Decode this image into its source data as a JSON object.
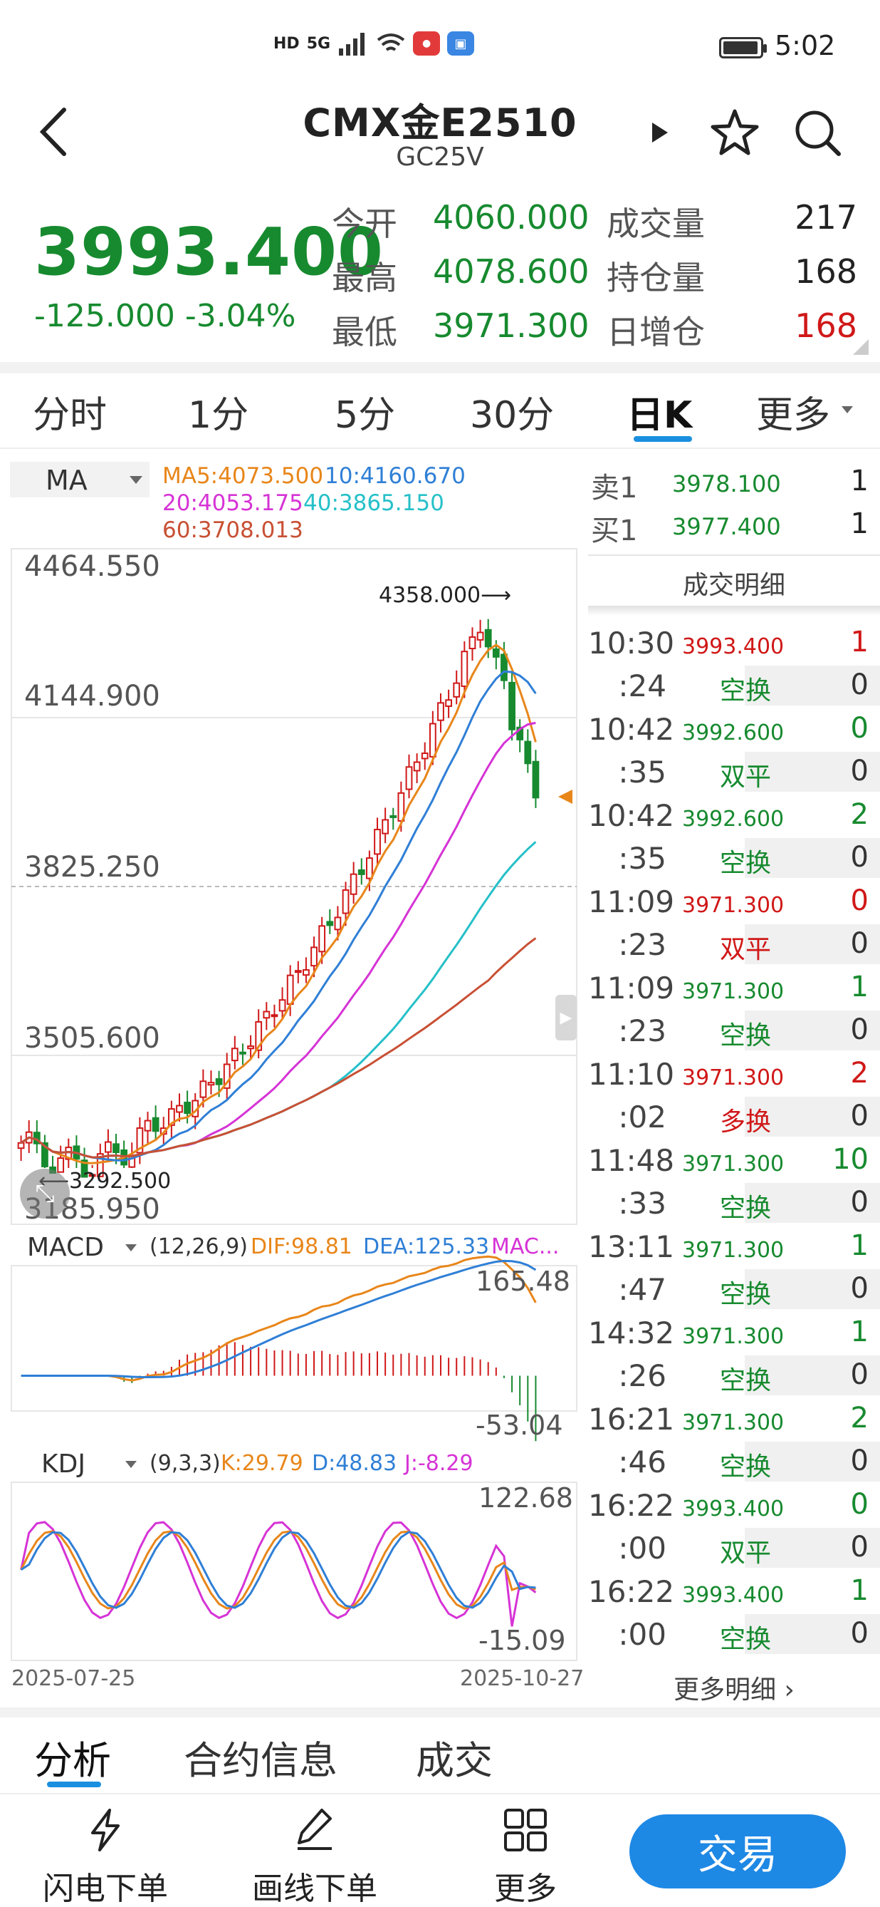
{
  "status_bar": {
    "time": "5:02",
    "chips": [
      "HD",
      "5G"
    ]
  },
  "header": {
    "title": "CMX金E2510",
    "subtitle": "GC25V"
  },
  "quote": {
    "price": "3993.400",
    "change": "-125.000",
    "change_pct": "-3.04%",
    "stats": [
      {
        "label": "今开",
        "value": "4060.000",
        "label2": "成交量",
        "value2": "217"
      },
      {
        "label": "最高",
        "value": "4078.600",
        "label2": "持仓量",
        "value2": "168"
      },
      {
        "label": "最低",
        "value": "3971.300",
        "label2": "日增仓",
        "value2": "168"
      }
    ]
  },
  "period_tabs": [
    "分时",
    "1分",
    "5分",
    "30分",
    "日K",
    "更多"
  ],
  "active_period": "日K",
  "indicators": {
    "ma_selector": "MA",
    "ma5": "MA5:4073.500",
    "ma10": "10:4160.670",
    "ma20": "20:4053.175",
    "ma40": "40:3865.150",
    "ma60": "60:3708.013",
    "macd_selector": "MACD",
    "macd_params": "(12,26,9)",
    "macd_dif": "DIF:98.81",
    "macd_dea": "DEA:125.33",
    "macd_macd": "MAC...",
    "macd_max": "165.48",
    "macd_min": "-53.04",
    "kdj_selector": "KDJ",
    "kdj_params": "(9,3,3)",
    "kdj_k": "K:29.79",
    "kdj_d": "D:48.83",
    "kdj_j": "J:-8.29",
    "kdj_max": "122.68",
    "kdj_min": "-15.09"
  },
  "chart_axis": {
    "y_labels": [
      "4464.550",
      "4144.900",
      "3825.250",
      "3505.600",
      "3185.950"
    ],
    "high_label": "4358.000",
    "low_label": "3292.500",
    "x_start": "2025-07-25",
    "x_end": "2025-10-27"
  },
  "colors": {
    "up": "#d01818",
    "down": "#178a2f",
    "ma5": "#e8861a",
    "ma10": "#2f7fd6",
    "ma20": "#d633d6",
    "ma40": "#26c0c8",
    "ma60": "#c85034"
  },
  "chart_data": {
    "type": "candlestick",
    "x_range": [
      "2025-07-25",
      "2025-10-27"
    ],
    "ylim": [
      3185.95,
      4464.55
    ],
    "high": 4358.0,
    "low": 3292.5,
    "last_close": 3993.4,
    "ma_last": {
      "MA5": 4073.5,
      "MA10": 4160.67,
      "MA20": 4053.175,
      "MA40": 3865.15,
      "MA60": 3708.013
    },
    "macd": {
      "dif": 98.81,
      "dea": 125.33,
      "range": [
        -53.04,
        165.48
      ]
    },
    "kdj": {
      "k": 29.79,
      "d": 48.83,
      "j": -8.29,
      "range": [
        -15.09,
        122.68
      ]
    }
  },
  "order_book": {
    "ask_label": "卖1",
    "ask_price": "3978.100",
    "ask_vol": "1",
    "bid_label": "买1",
    "bid_price": "3977.400",
    "bid_vol": "1"
  },
  "tape": {
    "header": "成交明细",
    "trades": [
      {
        "time": "10:30",
        "sec": ":24",
        "price": "3993.400",
        "type": "空换",
        "vol": "1",
        "oi": "0",
        "dir": "up"
      },
      {
        "time": "10:42",
        "sec": ":35",
        "price": "3992.600",
        "type": "双平",
        "vol": "0",
        "oi": "0",
        "dir": "down"
      },
      {
        "time": "10:42",
        "sec": ":35",
        "price": "3992.600",
        "type": "空换",
        "vol": "2",
        "oi": "0",
        "dir": "down"
      },
      {
        "time": "11:09",
        "sec": ":23",
        "price": "3971.300",
        "type": "双平",
        "vol": "0",
        "oi": "0",
        "dir": "up"
      },
      {
        "time": "11:09",
        "sec": ":23",
        "price": "3971.300",
        "type": "空换",
        "vol": "1",
        "oi": "0",
        "dir": "down"
      },
      {
        "time": "11:10",
        "sec": ":02",
        "price": "3971.300",
        "type": "多换",
        "vol": "2",
        "oi": "0",
        "dir": "up"
      },
      {
        "time": "11:48",
        "sec": ":33",
        "price": "3971.300",
        "type": "空换",
        "vol": "10",
        "oi": "0",
        "dir": "down"
      },
      {
        "time": "13:11",
        "sec": ":47",
        "price": "3971.300",
        "type": "空换",
        "vol": "1",
        "oi": "0",
        "dir": "down"
      },
      {
        "time": "14:32",
        "sec": ":26",
        "price": "3971.300",
        "type": "空换",
        "vol": "1",
        "oi": "0",
        "dir": "down"
      },
      {
        "time": "16:21",
        "sec": ":46",
        "price": "3971.300",
        "type": "空换",
        "vol": "2",
        "oi": "0",
        "dir": "down"
      },
      {
        "time": "16:22",
        "sec": ":00",
        "price": "3993.400",
        "type": "双平",
        "vol": "0",
        "oi": "0",
        "dir": "down"
      },
      {
        "time": "16:22",
        "sec": ":00",
        "price": "3993.400",
        "type": "空换",
        "vol": "1",
        "oi": "0",
        "dir": "down"
      }
    ],
    "more": "更多明细"
  },
  "bottom_tabs": [
    "分析",
    "合约信息",
    "成交"
  ],
  "bottom_bar": {
    "flash": "闪电下单",
    "draw": "画线下单",
    "more": "更多",
    "trade": "交易"
  }
}
